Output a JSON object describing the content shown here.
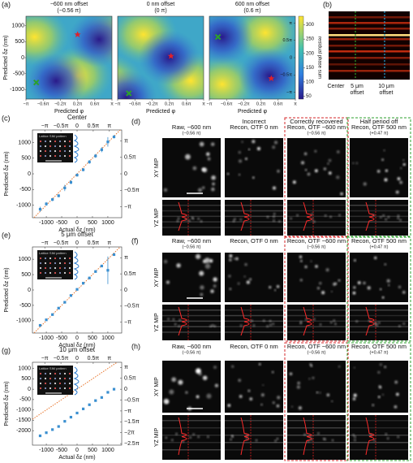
{
  "panel_a": {
    "label": "(a)",
    "maps": [
      {
        "title": "−600 nm offset",
        "subtitle": "(−0.56 π)"
      },
      {
        "title": "0 nm offset",
        "subtitle": "(0 π)"
      },
      {
        "title": "600 nm offset",
        "subtitle": "(0.6 π)"
      }
    ],
    "ylabel": "Predicted δz (nm)",
    "xlabel": "Predicted φ",
    "ylim": [
      -1300,
      1300
    ],
    "yticks": [
      -1000,
      -500,
      0,
      500,
      1000
    ],
    "xlim": [
      -1,
      1
    ],
    "xticks": [
      {
        "value": -1,
        "label": "−π"
      },
      {
        "value": -0.6,
        "label": "−0.6π"
      },
      {
        "value": -0.2,
        "label": "−0.2π"
      },
      {
        "value": 0.2,
        "label": "0.2π"
      },
      {
        "value": 0.6,
        "label": "0.6π"
      },
      {
        "value": 1,
        "label": "π"
      }
    ],
    "y2lim": [
      -1.2,
      1.2
    ],
    "y2ticks": [
      {
        "value": 1,
        "label": "π"
      },
      {
        "value": 0.5,
        "label": "0.5π"
      },
      0,
      {
        "value": -0.5,
        "label": "−0.5π"
      },
      {
        "value": -1,
        "label": "−π"
      }
    ],
    "colorbar_label": "residual phase sum",
    "clim": [
      40,
      330
    ],
    "colorbar_ticks": [
      50,
      100,
      150,
      200,
      250,
      300
    ]
  },
  "panel_b": {
    "label": "(b)",
    "labels": [
      [
        "Center"
      ],
      [
        "5 μm",
        "offset"
      ],
      [
        "10 μm",
        "offset"
      ]
    ]
  },
  "chart_data": [
    {
      "type": "scatter",
      "label": "(c)",
      "title": "Center",
      "xlabel": "Actual δz (nm)",
      "ylabel": "Predicted δz (nm)",
      "inset": "Lattice SIM pattern",
      "x": [
        -1200,
        -1000,
        -800,
        -600,
        -400,
        -200,
        0,
        200,
        400,
        600,
        800,
        1000,
        1200
      ],
      "values": [
        -1130,
        -960,
        -820,
        -700,
        -450,
        -270,
        -40,
        130,
        380,
        570,
        770,
        1020,
        1180
      ],
      "errors": [
        80,
        60,
        50,
        50,
        100,
        60,
        50,
        50,
        60,
        60,
        80,
        150,
        50
      ],
      "color": "#3a8fd0",
      "xlim": [
        -1450,
        1450
      ],
      "xticks": [
        -1000,
        -500,
        0,
        500,
        1000
      ],
      "ylim": [
        -1400,
        1400
      ],
      "yticks": [
        -1000,
        -500,
        0,
        500,
        1000
      ],
      "x2ticks": [
        {
          "value": -1050,
          "label": "−π"
        },
        {
          "value": -525,
          "label": "−0.5π"
        },
        0,
        {
          "value": 525,
          "label": "0.5π"
        },
        {
          "value": 1050,
          "label": "π"
        }
      ],
      "y2lim": [
        -1400,
        1400
      ],
      "y2ticks": [
        {
          "value": 1050,
          "label": "π"
        },
        {
          "value": 525,
          "label": "0.5π"
        },
        0,
        {
          "value": -525,
          "label": "−0.5π"
        },
        {
          "value": -1050,
          "label": "−π"
        }
      ]
    },
    {
      "type": "scatter",
      "label": "(e)",
      "title": "5 μm offset",
      "xlabel": "Actual δz (nm)",
      "ylabel": "Predicted δz (nm)",
      "inset": "Lattice SIM pattern",
      "x": [
        -1200,
        -1000,
        -800,
        -600,
        -400,
        -200,
        0,
        200,
        400,
        600,
        800,
        1000,
        1200
      ],
      "values": [
        -1150,
        -970,
        -800,
        -590,
        -400,
        -180,
        20,
        220,
        390,
        600,
        780,
        640,
        1150
      ],
      "errors": [
        40,
        30,
        30,
        30,
        30,
        30,
        30,
        40,
        40,
        40,
        40,
        450,
        40
      ],
      "color": "#3a8fd0",
      "xlim": [
        -1450,
        1450
      ],
      "xticks": [
        -1000,
        -500,
        0,
        500,
        1000
      ],
      "ylim": [
        -1400,
        1400
      ],
      "yticks": [
        -1000,
        -500,
        0,
        500,
        1000
      ],
      "x2ticks": [
        {
          "value": -1050,
          "label": "−π"
        },
        {
          "value": -525,
          "label": "−0.5π"
        },
        0,
        {
          "value": 525,
          "label": "0.5π"
        },
        {
          "value": 1050,
          "label": "π"
        }
      ],
      "y2lim": [
        -1400,
        1400
      ],
      "y2ticks": [
        {
          "value": 1050,
          "label": "π"
        },
        {
          "value": 525,
          "label": "0.5π"
        },
        0,
        {
          "value": -525,
          "label": "−0.5π"
        },
        {
          "value": -1050,
          "label": "−π"
        }
      ]
    },
    {
      "type": "scatter",
      "label": "(g)",
      "title": "10 μm offset",
      "xlabel": "Actual δz (nm)",
      "ylabel": "Predicted δz (nm)",
      "inset": "Lattice SIM pattern",
      "x": [
        -1200,
        -1000,
        -800,
        -600,
        -400,
        -200,
        0,
        200,
        400,
        600,
        800,
        1000,
        1200
      ],
      "values": [
        -2250,
        -2100,
        -1950,
        -1800,
        -1550,
        -1350,
        -1150,
        -950,
        -750,
        -550,
        -400,
        -150,
        0
      ],
      "errors": [
        40,
        30,
        30,
        30,
        30,
        30,
        30,
        30,
        30,
        30,
        30,
        30,
        30
      ],
      "color": "#3a8fd0",
      "xlim": [
        -1450,
        1450
      ],
      "xticks": [
        -1000,
        -500,
        0,
        500,
        1000
      ],
      "ylim": [
        -2700,
        1300
      ],
      "yticks": [
        -2000,
        -1500,
        -1000,
        -500,
        0,
        500,
        1000
      ],
      "x2ticks": [
        {
          "value": -1050,
          "label": "−π"
        },
        {
          "value": -525,
          "label": "−0.5π"
        },
        0,
        {
          "value": 525,
          "label": "0.5π"
        },
        {
          "value": 1050,
          "label": "π"
        }
      ],
      "y2lim": [
        -2700,
        1300
      ],
      "y2ticks": [
        {
          "value": 1050,
          "label": "π"
        },
        {
          "value": 525,
          "label": "0.5π"
        },
        0,
        {
          "value": -525,
          "label": "−0.5π"
        },
        {
          "value": -1050,
          "label": "−π"
        },
        {
          "value": -1575,
          "label": "−1.5π"
        },
        {
          "value": -2100,
          "label": "−2π"
        },
        {
          "value": -2625,
          "label": "−2.5π"
        }
      ]
    }
  ],
  "image_rows": [
    {
      "label": "(d)",
      "rows": [
        "XY MIP",
        "YZ MIP"
      ],
      "columns": [
        {
          "title": "Raw, −600 nm",
          "note": "(−0.56 π)"
        },
        {
          "heading": "Incorrect",
          "title": "Recon, OTF 0 nm"
        },
        {
          "heading": "Correctly recovered",
          "title": "Recon, OTF −600 nm",
          "note": "(−0.56 π)",
          "frame": "#d62728"
        },
        {
          "heading": "Half period off",
          "title": "Recon, OTF 500 nm",
          "note": "(+0.47 π)",
          "frame": "#2ca02c"
        }
      ]
    },
    {
      "label": "(f)",
      "rows": [
        "XY MIP",
        "YZ MIP"
      ],
      "columns": [
        {
          "title": "Raw, −600 nm",
          "note": "(−0.56 π)"
        },
        {
          "title": "Recon, OTF 0 nm"
        },
        {
          "title": "Recon, OTF −600 nm",
          "note": "(−0.56 π)",
          "frame": "#d62728"
        },
        {
          "title": "Recon, OTF 500 nm",
          "note": "(+0.47 π)",
          "frame": "#2ca02c"
        }
      ]
    },
    {
      "label": "(h)",
      "rows": [
        "XY MIP",
        "YZ MIP"
      ],
      "columns": [
        {
          "title": "Raw, −600 nm",
          "note": "(−0.56 π)"
        },
        {
          "title": "Recon, OTF 0 nm"
        },
        {
          "title": "Recon, OTF −600 nm",
          "note": "(−0.56 π)",
          "frame": "#d62728"
        },
        {
          "title": "Recon, OTF 500 nm",
          "note": "(+0.47 π)",
          "frame": "#2ca02c"
        }
      ]
    }
  ]
}
